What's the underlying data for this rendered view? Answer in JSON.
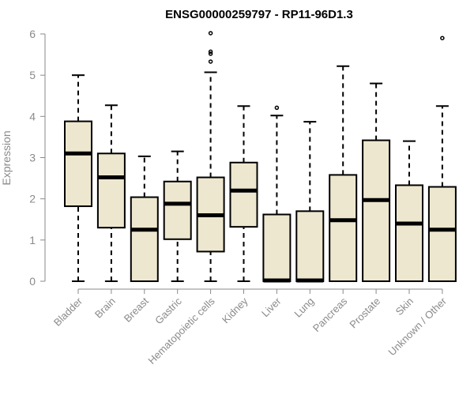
{
  "chart_data": {
    "type": "boxplot",
    "title": "ENSG00000259797 - RP11-96D1.3",
    "ylabel": "Expression",
    "ylim": [
      0,
      6
    ],
    "yticks": [
      0,
      1,
      2,
      3,
      4,
      5,
      6
    ],
    "box_color": "#ede7cf",
    "line_color": "#000000",
    "categories": [
      "Bladder",
      "Brain",
      "Breast",
      "Gastric",
      "Hematopoietic cells",
      "Kidney",
      "Liver",
      "Lung",
      "Pancreas",
      "Prostate",
      "Skin",
      "Unknown / Other"
    ],
    "boxes": [
      {
        "min": 0,
        "q1": 1.82,
        "median": 3.1,
        "q3": 3.88,
        "max": 5.0,
        "outliers": []
      },
      {
        "min": 0,
        "q1": 1.3,
        "median": 2.52,
        "q3": 3.1,
        "max": 4.27,
        "outliers": []
      },
      {
        "min": 0,
        "q1": 0,
        "median": 1.25,
        "q3": 2.04,
        "max": 3.03,
        "outliers": []
      },
      {
        "min": 0,
        "q1": 1.02,
        "median": 1.88,
        "q3": 2.42,
        "max": 3.15,
        "outliers": []
      },
      {
        "min": 0,
        "q1": 0.72,
        "median": 1.6,
        "q3": 2.52,
        "max": 5.07,
        "outliers": [
          5.33,
          5.52,
          5.57,
          6.02
        ]
      },
      {
        "min": 0,
        "q1": 1.32,
        "median": 2.2,
        "q3": 2.88,
        "max": 4.25,
        "outliers": []
      },
      {
        "min": 0,
        "q1": 0,
        "median": 0.02,
        "q3": 1.62,
        "max": 4.02,
        "outliers": [
          4.21
        ]
      },
      {
        "min": 0,
        "q1": 0,
        "median": 0.02,
        "q3": 1.7,
        "max": 3.87,
        "outliers": []
      },
      {
        "min": 0,
        "q1": 0,
        "median": 1.48,
        "q3": 2.58,
        "max": 5.22,
        "outliers": []
      },
      {
        "min": 0,
        "q1": 0,
        "median": 1.97,
        "q3": 3.42,
        "max": 4.8,
        "outliers": []
      },
      {
        "min": 0,
        "q1": 0,
        "median": 1.4,
        "q3": 2.33,
        "max": 3.4,
        "outliers": []
      },
      {
        "min": 0,
        "q1": 0,
        "median": 1.25,
        "q3": 2.29,
        "max": 4.25,
        "outliers": [
          5.9
        ]
      }
    ]
  }
}
